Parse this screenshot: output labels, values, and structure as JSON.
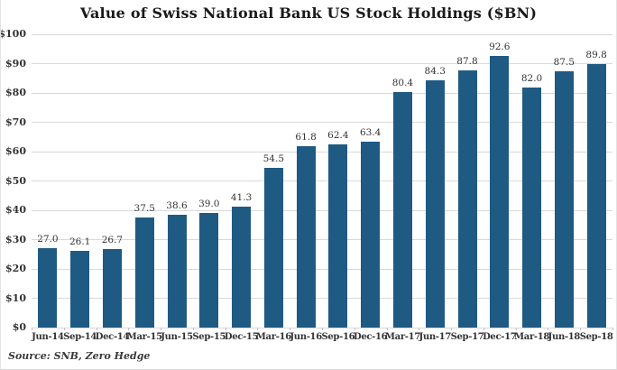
{
  "source": "Source: SNB, Zero Hedge",
  "colors": {
    "bar": "#1f5a83",
    "gridline": "#d9d9d9",
    "axis_text": "#333333",
    "title_text": "#1a1a1a",
    "background": "#ffffff"
  },
  "chart_data": {
    "type": "bar",
    "title": "Value of Swiss National Bank US Stock Holdings ($BN)",
    "categories": [
      "Jun-14",
      "Sep-14",
      "Dec-14",
      "Mar-15",
      "Jun-15",
      "Sep-15",
      "Dec-15",
      "Mar-16",
      "Jun-16",
      "Sep-16",
      "Dec-16",
      "Mar-17",
      "Jun-17",
      "Sep-17",
      "Dec-17",
      "Mar-18",
      "Jun-18",
      "Sep-18"
    ],
    "values": [
      27.0,
      26.1,
      26.7,
      37.5,
      38.6,
      39.0,
      41.3,
      54.5,
      61.8,
      62.4,
      63.4,
      80.4,
      84.3,
      87.8,
      92.6,
      82.0,
      87.5,
      89.8
    ],
    "value_label_decimals": 1,
    "xlabel": "",
    "ylabel": "",
    "ylim": [
      0,
      100
    ],
    "y_tick_step": 10,
    "y_tick_prefix": "$",
    "grid": true,
    "legend": null
  }
}
